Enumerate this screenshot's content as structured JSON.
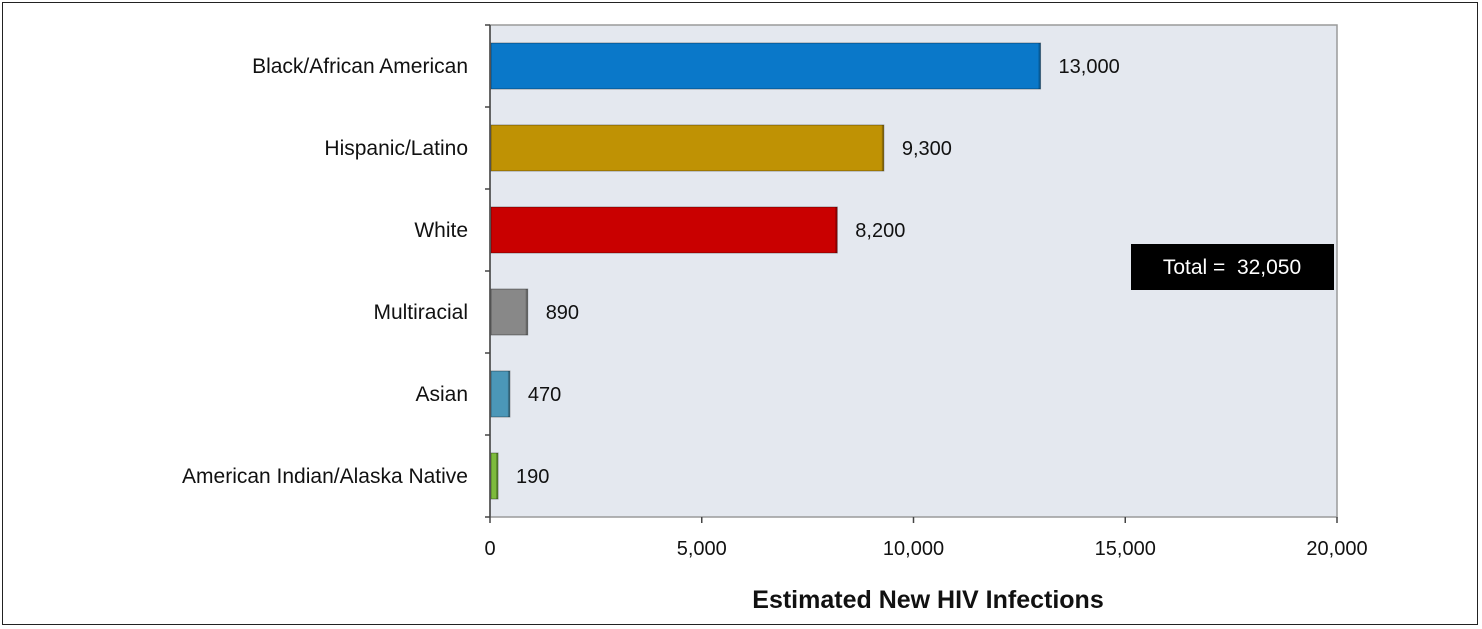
{
  "chart_data": {
    "type": "bar",
    "orientation": "horizontal",
    "categories": [
      "Black/African American",
      "Hispanic/Latino",
      "White",
      "Multiracial",
      "Asian",
      "American Indian/Alaska Native"
    ],
    "values": [
      13000,
      9300,
      8200,
      890,
      470,
      190
    ],
    "value_labels": [
      "13,000",
      "9,300",
      "8,200",
      "890",
      "470",
      "190"
    ],
    "colors": [
      "#0a78c9",
      "#bf9204",
      "#c90000",
      "#888888",
      "#4b97b8",
      "#7dbb3c"
    ],
    "xlabel": "Estimated New HIV Infections",
    "xlim": [
      0,
      20000
    ],
    "xticks": [
      0,
      5000,
      10000,
      15000,
      20000
    ],
    "xtick_labels": [
      "0",
      "5,000",
      "10,000",
      "15,000",
      "20,000"
    ],
    "plot_background": "#e4e8ef",
    "annotation": {
      "text": "Total =  32,050",
      "background": "#000000",
      "color": "#ffffff"
    },
    "grid": false
  }
}
